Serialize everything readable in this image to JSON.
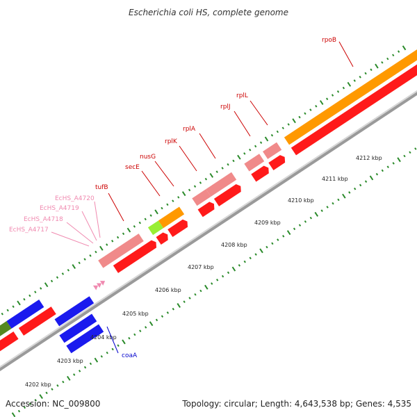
{
  "title": "Escherichia coli HS, complete genome",
  "footer": {
    "accession": "Accession: NC_009800",
    "summary": "Topology: circular; Length: 4,643,538 bp; Genes: 4,535"
  },
  "kbp_labels": [
    "4202 kbp",
    "4203 kbp",
    "4204 kbp",
    "4205 kbp",
    "4206 kbp",
    "4207 kbp",
    "4208 kbp",
    "4209 kbp",
    "4210 kbp",
    "4211 kbp",
    "4212 kbp"
  ],
  "genes": {
    "rpoB": "rpoB",
    "rplL": "rplL",
    "rplJ": "rplJ",
    "rplA": "rplA",
    "rplK": "rplK",
    "nusG": "nusG",
    "secE": "secE",
    "tufB": "tufB",
    "a4720": "EcHS_A4720",
    "a4719": "EcHS_A4719",
    "a4718": "EcHS_A4718",
    "a4717": "EcHS_A4717",
    "coaA": "coaA"
  },
  "colors": {
    "red": "#ff1a1a",
    "pink": "#f08a8a",
    "orange": "#ff9900",
    "blue": "#1a1aee",
    "olive": "#558822",
    "lime": "#99ee33",
    "tick_green": "#2a8a2a",
    "axis": "#888888",
    "gene_label_red": "#cc0000",
    "gene_label_pink": "#f08ab0",
    "gene_label_blue": "#0000cc"
  }
}
